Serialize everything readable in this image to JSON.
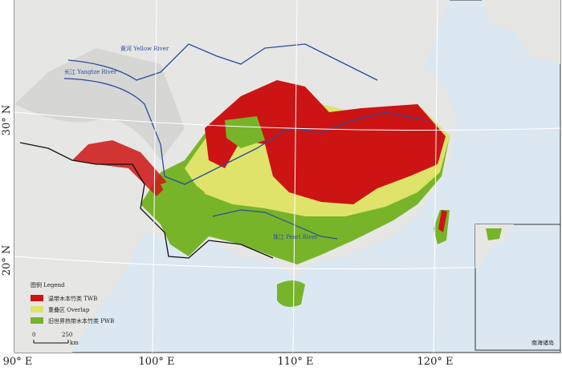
{
  "map": {
    "longitude_labels": [
      "90° E",
      "100° E",
      "110° E",
      "120° E"
    ],
    "latitude_labels": [
      "30° N",
      "20° N"
    ],
    "rivers": [
      "黄河 Yellow River",
      "长江 Yangtze River",
      "珠江 Pearl River"
    ],
    "legend": {
      "title": "图例 Legend",
      "items": [
        {
          "label": "温带木本竹类 TWB",
          "color": "#cc1414"
        },
        {
          "label": "重叠区 Overlap",
          "color": "#dfe36a"
        },
        {
          "label": "旧世界热带木本竹类 PWB",
          "color": "#78b42a"
        }
      ]
    },
    "scale_bar": {
      "labels": [
        "0",
        "250",
        "km"
      ]
    },
    "inset_label": "南海诸岛"
  }
}
